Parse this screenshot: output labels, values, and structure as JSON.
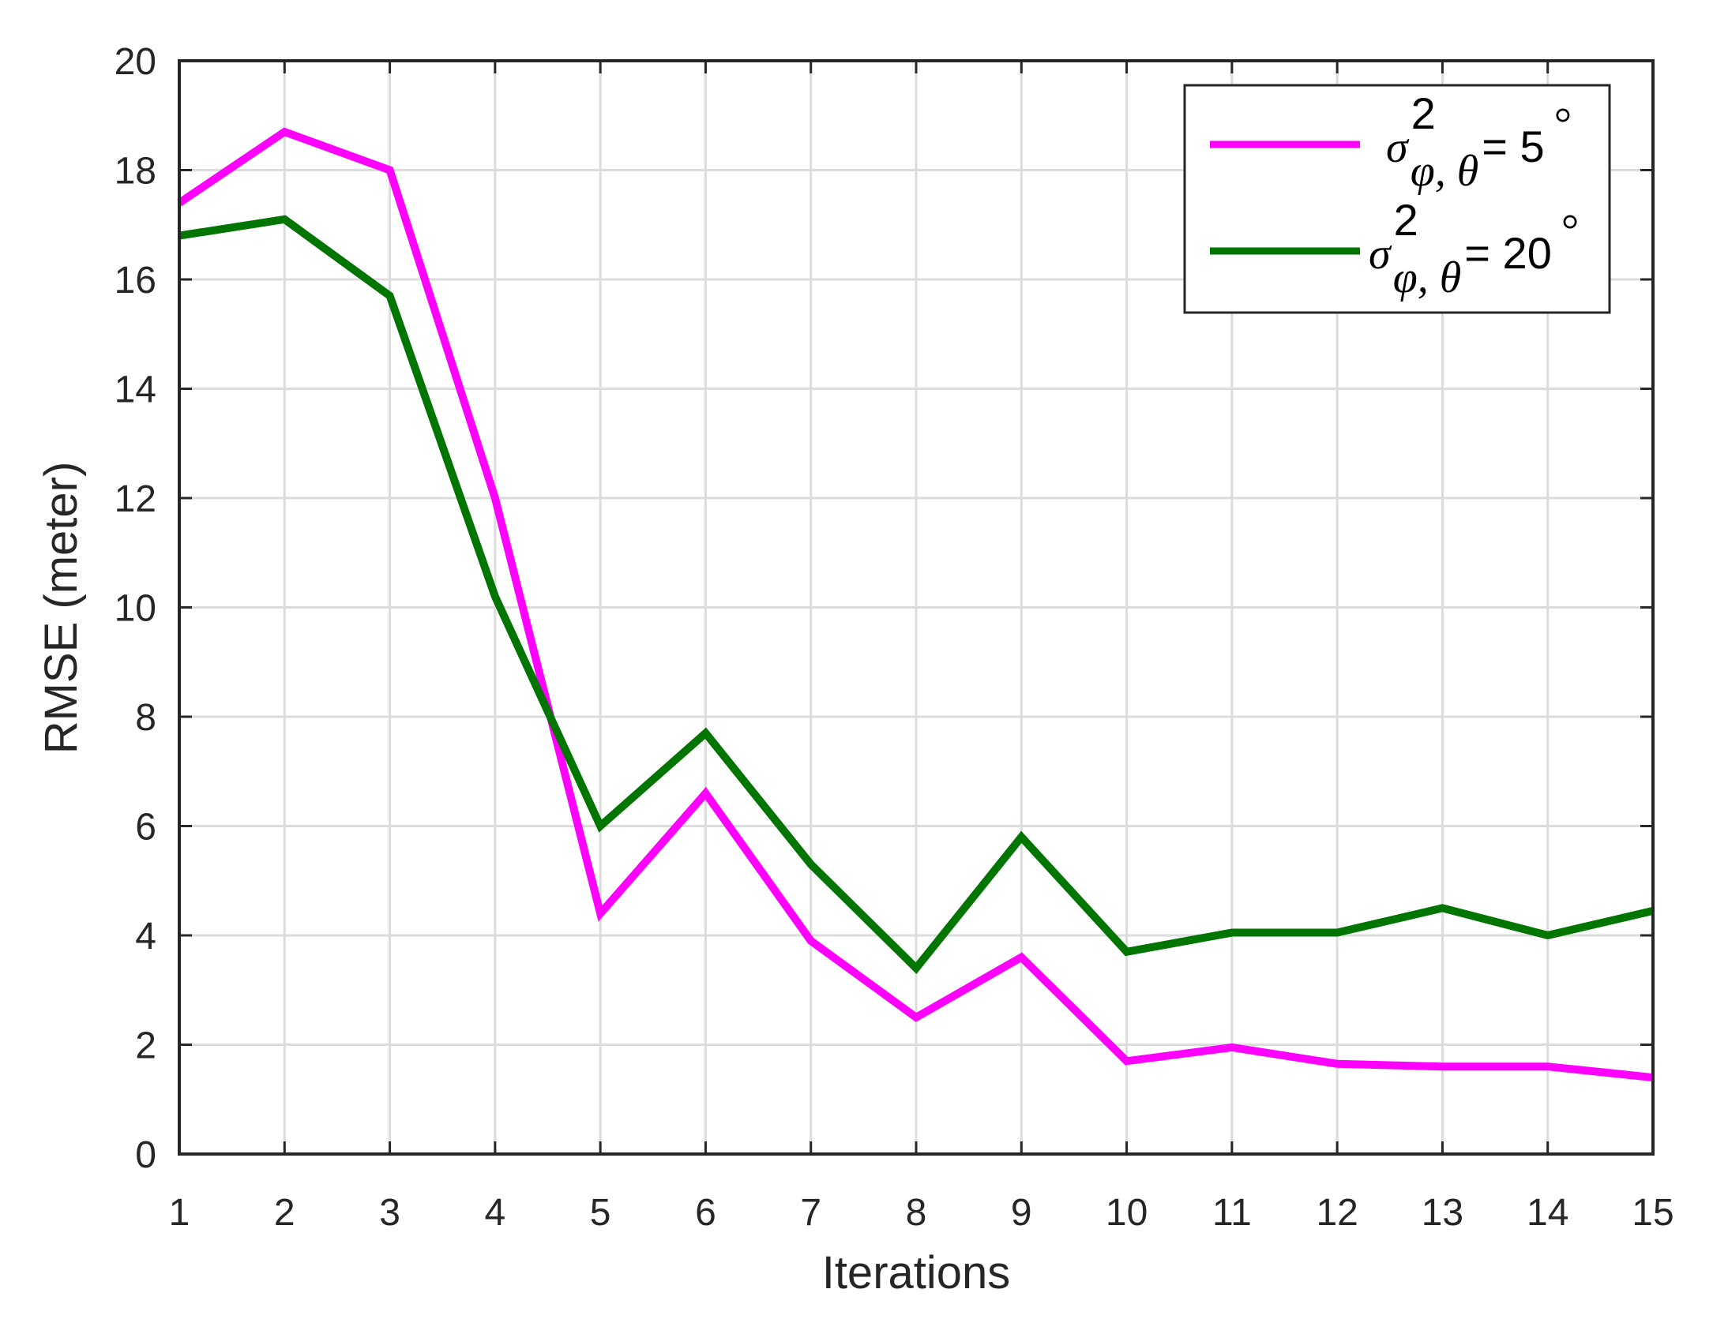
{
  "chart_data": {
    "type": "line",
    "xlabel": "Iterations",
    "ylabel": "RMSE (meter)",
    "xlim": [
      1,
      15
    ],
    "ylim": [
      0,
      20
    ],
    "x_ticks": [
      "1",
      "2",
      "3",
      "4",
      "5",
      "6",
      "7",
      "8",
      "9",
      "10",
      "11",
      "12",
      "13",
      "14",
      "15"
    ],
    "y_ticks": [
      "0",
      "2",
      "4",
      "6",
      "8",
      "10",
      "12",
      "14",
      "16",
      "18",
      "20"
    ],
    "grid": true,
    "legend_position": "top-right",
    "x": [
      1,
      2,
      3,
      4,
      5,
      6,
      7,
      8,
      9,
      10,
      11,
      12,
      13,
      14,
      15
    ],
    "series": [
      {
        "name": "σ²φ, θ= 5°",
        "color": "#ff00ff",
        "values": [
          17.4,
          18.7,
          18.0,
          12.0,
          4.4,
          6.6,
          3.9,
          2.5,
          3.6,
          1.7,
          1.95,
          1.65,
          1.6,
          1.6,
          1.4
        ]
      },
      {
        "name": "σ²φ, θ= 20°",
        "color": "#007500",
        "values": [
          16.8,
          17.1,
          15.7,
          10.2,
          6.0,
          7.7,
          5.3,
          3.4,
          5.8,
          3.7,
          4.05,
          4.05,
          4.5,
          4.0,
          4.45
        ]
      }
    ],
    "legend": [
      {
        "symbol": "σ",
        "sup": "2",
        "sub": "φ, θ",
        "suffix": "= 5",
        "degree": "°"
      },
      {
        "symbol": "σ",
        "sup": "2",
        "sub": "φ, θ",
        "suffix": "= 20",
        "degree": "°"
      }
    ]
  }
}
